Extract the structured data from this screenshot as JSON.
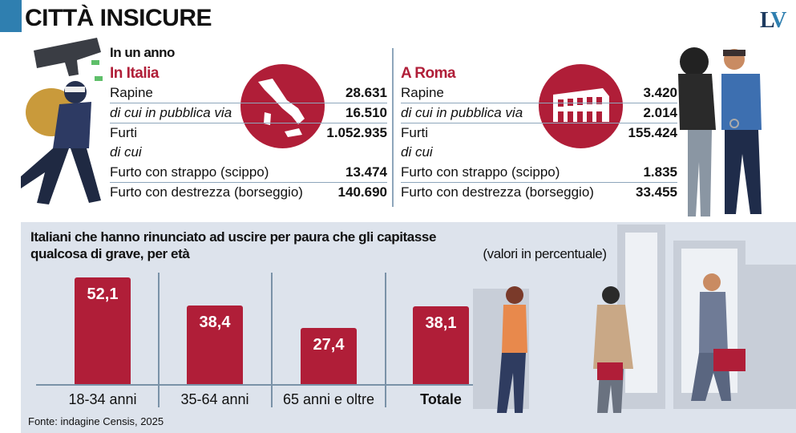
{
  "header": {
    "title": "CITTÀ INSICURE",
    "logo": "LV"
  },
  "intro": "In un anno",
  "italia": {
    "region": "In Italia",
    "rows": [
      {
        "label": "Rapine",
        "value": "28.631"
      },
      {
        "label": "di cui in pubblica via",
        "value": "16.510"
      },
      {
        "label": "Furti",
        "value": "1.052.935"
      },
      {
        "label": "di cui",
        "value": ""
      },
      {
        "label": "Furto con strappo (scippo)",
        "value": "13.474"
      },
      {
        "label": "Furto con destrezza (borseggio)",
        "value": "140.690"
      }
    ]
  },
  "roma": {
    "region": "A Roma",
    "rows": [
      {
        "label": "Rapine",
        "value": "3.420"
      },
      {
        "label": "di cui in pubblica via",
        "value": "2.014"
      },
      {
        "label": "Furti",
        "value": "155.424"
      },
      {
        "label": "di cui",
        "value": ""
      },
      {
        "label": "Furto con strappo (scippo)",
        "value": "1.835"
      },
      {
        "label": "Furto con destrezza (borseggio)",
        "value": "33.455"
      }
    ]
  },
  "chart_data": {
    "type": "bar",
    "title": "Italiani che hanno rinunciato ad uscire per paura che gli capitasse qualcosa di grave, per età",
    "title_bold": "Italiani che hanno rinunciato ad uscire per paura che gli capitasse qualcosa di grave, per età",
    "subtitle": "(valori in percentuale)",
    "categories": [
      "18-34 anni",
      "35-64 anni",
      "65 anni e oltre",
      "Totale"
    ],
    "values": [
      52.1,
      38.4,
      27.4,
      38.1
    ],
    "value_labels": [
      "52,1",
      "38,4",
      "27,4",
      "38,1"
    ],
    "bar_color": "#b01e38",
    "grid": false
  },
  "source": "Fonte: indagine Censis, 2025",
  "colors": {
    "accent": "#b01e38",
    "brand": "#2f7fb0",
    "panel": "#dde3ec"
  }
}
